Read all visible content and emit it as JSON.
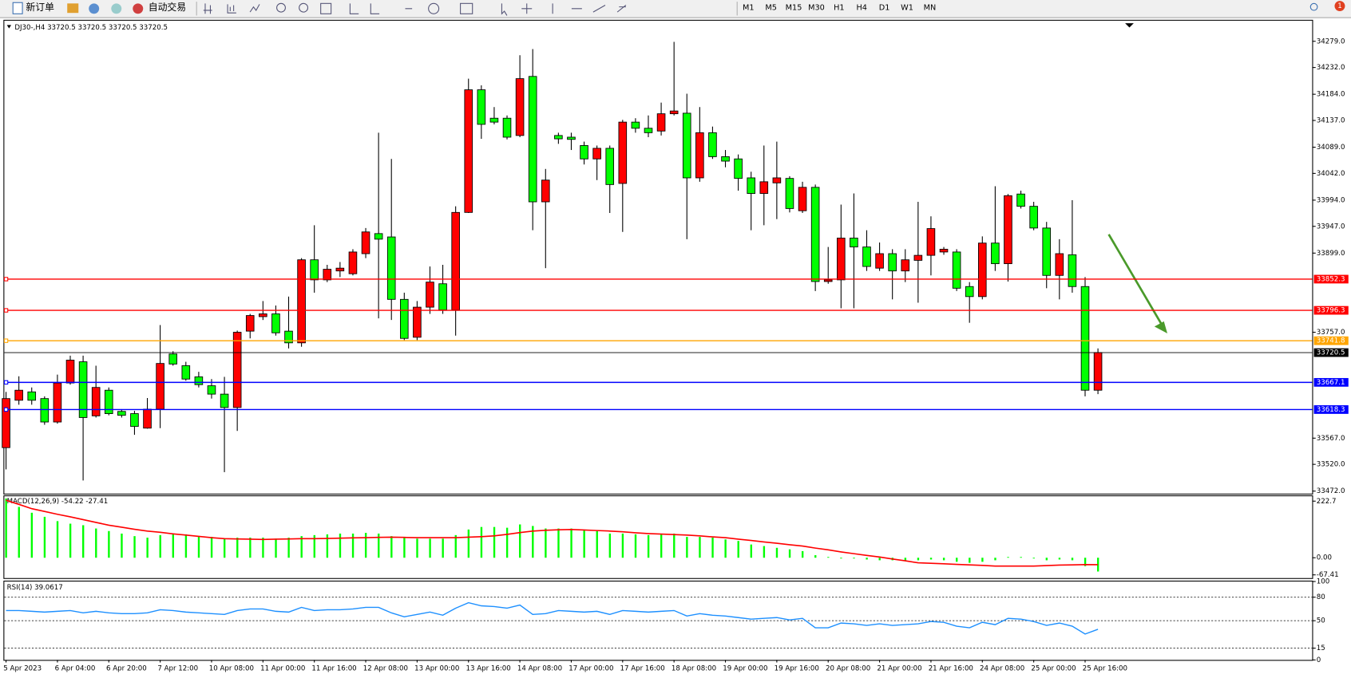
{
  "toolbar": {
    "new_order": "新订单",
    "auto_trading": "自动交易",
    "timeframes": [
      "M1",
      "M5",
      "M15",
      "M30",
      "H1",
      "H4",
      "D1",
      "W1",
      "MN"
    ],
    "notification": "1"
  },
  "chart_data": [
    {
      "type": "candlestick",
      "title": "DJ30-,H4  33720.5 33720.5 33720.5 33720.5",
      "categories": [
        "5 Apr 2023",
        null,
        null,
        null,
        "6 Apr 04:00",
        null,
        null,
        null,
        "6 Apr 20:00",
        null,
        null,
        null,
        "7 Apr 12:00",
        null,
        null,
        null,
        "10 Apr 08:00",
        null,
        null,
        null,
        "11 Apr 00:00",
        null,
        null,
        null,
        "11 Apr 16:00",
        null,
        null,
        null,
        "12 Apr 08:00",
        null,
        null,
        null,
        "13 Apr 00:00",
        null,
        null,
        null,
        "13 Apr 16:00",
        null,
        null,
        null,
        "14 Apr 08:00",
        null,
        null,
        null,
        "17 Apr 00:00",
        null,
        null,
        null,
        "17 Apr 16:00",
        null,
        null,
        null,
        "18 Apr 08:00",
        null,
        null,
        null,
        "19 Apr 00:00",
        null,
        null,
        null,
        "19 Apr 16:00",
        null,
        null,
        null,
        "20 Apr 08:00",
        null,
        null,
        null,
        "21 Apr 00:00",
        null,
        null,
        null,
        "21 Apr 16:00",
        null,
        null,
        null,
        "24 Apr 08:00",
        null,
        null,
        null,
        "25 Apr 00:00",
        null,
        null,
        null,
        "25 Apr 16:00",
        null
      ],
      "open": [
        33550,
        33635,
        33650,
        33638,
        33596,
        33666,
        33704,
        33607,
        33653,
        33615,
        33611,
        33585,
        33619,
        33718,
        33697,
        33677,
        33661,
        33646,
        33622,
        33759,
        33785,
        33790,
        33759,
        33738,
        33887,
        33851,
        33867,
        33862,
        33898,
        33934,
        33928,
        33816,
        33748,
        33802,
        33844,
        33797,
        33972,
        34192,
        34141,
        34141,
        34110,
        34216,
        33991,
        34110,
        34107,
        34092,
        34068,
        34087,
        34024,
        34134,
        34123,
        34118,
        34149,
        34150,
        34034,
        34115,
        34072,
        34068,
        34034,
        34006,
        34025,
        34033,
        33975,
        34017,
        33848,
        33851,
        33926,
        33910,
        33872,
        33898,
        33867,
        33886,
        33895,
        33901,
        33901,
        33839,
        33821,
        33917,
        33880,
        34005,
        33983,
        33944,
        33859,
        33896,
        33839,
        33653
      ],
      "high": [
        33650,
        33678,
        33658,
        33642,
        33681,
        33715,
        33715,
        33697,
        33658,
        33619,
        33616,
        33639,
        33770,
        33723,
        33704,
        33686,
        33673,
        33677,
        33760,
        33790,
        33813,
        33805,
        33821,
        33890,
        33949,
        33878,
        33883,
        33906,
        33944,
        34115,
        34068,
        33828,
        33813,
        33875,
        33878,
        33983,
        34212,
        34200,
        34161,
        34146,
        34254,
        34265,
        34050,
        34115,
        34115,
        34099,
        34092,
        34092,
        34138,
        34141,
        34146,
        34169,
        34278,
        34185,
        34161,
        34126,
        34084,
        34076,
        34045,
        34092,
        34099,
        34037,
        34027,
        34022,
        33910,
        33986,
        34006,
        33940,
        33918,
        33906,
        33906,
        33991,
        33965,
        33910,
        33906,
        33847,
        33929,
        34019,
        34005,
        34011,
        33991,
        33955,
        33924,
        33994,
        33856,
        33728
      ],
      "low": [
        33511,
        33627,
        33627,
        33591,
        33593,
        33663,
        33491,
        33604,
        33608,
        33604,
        33573,
        33584,
        33585,
        33697,
        33670,
        33658,
        33638,
        33506,
        33580,
        33746,
        33779,
        33751,
        33728,
        33731,
        33828,
        33847,
        33856,
        33859,
        33890,
        33782,
        33779,
        33743,
        33743,
        33790,
        33790,
        33751,
        33971,
        34104,
        34130,
        34103,
        34107,
        33940,
        33872,
        34095,
        34084,
        34058,
        34030,
        33971,
        33937,
        34115,
        34107,
        34110,
        34146,
        33924,
        34027,
        34068,
        34053,
        34011,
        33940,
        33949,
        33960,
        33972,
        33971,
        33831,
        33844,
        33800,
        33800,
        33867,
        33867,
        33816,
        33847,
        33810,
        33859,
        33896,
        33831,
        33774,
        33816,
        33867,
        33848,
        33979,
        33940,
        33836,
        33816,
        33828,
        33642,
        33646
      ],
      "close": [
        33638,
        33653,
        33635,
        33596,
        33666,
        33707,
        33604,
        33658,
        33611,
        33608,
        33588,
        33619,
        33701,
        33700,
        33673,
        33663,
        33646,
        33622,
        33757,
        33787,
        33790,
        33756,
        33738,
        33887,
        33851,
        33870,
        33872,
        33901,
        33937,
        33924,
        33816,
        33746,
        33802,
        33847,
        33797,
        33972,
        34192,
        34130,
        34134,
        34107,
        34212,
        33991,
        34030,
        34104,
        34103,
        34068,
        34087,
        34022,
        34134,
        34123,
        34115,
        34149,
        34154,
        34034,
        34115,
        34072,
        34064,
        34033,
        34006,
        34027,
        34034,
        33979,
        34017,
        33848,
        33851,
        33926,
        33910,
        33875,
        33898,
        33867,
        33887,
        33895,
        33943,
        33906,
        33836,
        33821,
        33917,
        33880,
        34002,
        33983,
        33944,
        33859,
        33898,
        33839,
        33653,
        33720.5
      ],
      "up_color": "#ff0000",
      "down_color": "#00ff00",
      "ylim": [
        33469,
        34316
      ],
      "yticks": [
        {
          "value": 34279,
          "label": "34279.0"
        },
        {
          "value": 34232,
          "label": "34232.0"
        },
        {
          "value": 34184,
          "label": "34184.0"
        },
        {
          "value": 34137,
          "label": "34137.0"
        },
        {
          "value": 34089,
          "label": "34089.0"
        },
        {
          "value": 34042,
          "label": "34042.0"
        },
        {
          "value": 33994,
          "label": "33994.0"
        },
        {
          "value": 33947,
          "label": "33947.0"
        },
        {
          "value": 33899,
          "label": "33899.0"
        },
        {
          "value": 33757,
          "label": "33757.0"
        },
        {
          "value": 33567,
          "label": "33567.0"
        },
        {
          "value": 33520,
          "label": "33520.0"
        },
        {
          "value": 33472,
          "label": "33472.0"
        }
      ],
      "levels": [
        {
          "value": 33852.3,
          "color": "#ff0000"
        },
        {
          "value": 33796.3,
          "color": "#ff0000"
        },
        {
          "value": 33741.8,
          "color": "#ffa500"
        },
        {
          "value": 33667.1,
          "color": "#0000ff"
        },
        {
          "value": 33618.3,
          "color": "#0000ff"
        }
      ],
      "current_price": 33720.5
    },
    {
      "type": "macd",
      "title": "MACD(12,26,9) -54.22 -27.41",
      "histogram": {
        "color": "#00ff00",
        "values": [
          233,
          200,
          177,
          161,
          144,
          134,
          128,
          115,
          105,
          95,
          85,
          79,
          89,
          95,
          92,
          85,
          82,
          75,
          79,
          79,
          79,
          75,
          79,
          85,
          89,
          92,
          95,
          95,
          98,
          95,
          85,
          79,
          75,
          75,
          75,
          89,
          111,
          121,
          121,
          118,
          131,
          125,
          115,
          115,
          115,
          108,
          105,
          95,
          95,
          92,
          89,
          92,
          95,
          82,
          82,
          79,
          72,
          66,
          52,
          46,
          39,
          33,
          26,
          10,
          3,
          -3,
          -3,
          -7,
          -10,
          -10,
          -13,
          -10,
          -7,
          -10,
          -16,
          -20,
          -16,
          -10,
          3,
          3,
          -3,
          -10,
          -7,
          -10,
          -33,
          -54.22
        ]
      },
      "signal": {
        "color": "#ff0000",
        "values": [
          226,
          210,
          193,
          182,
          171,
          161,
          150,
          139,
          128,
          120,
          112,
          105,
          100,
          94,
          89,
          84,
          79,
          75,
          74,
          73,
          72,
          73,
          74,
          75,
          75,
          76,
          77,
          78,
          79,
          80,
          81,
          80,
          79,
          79,
          79,
          79,
          81,
          83,
          86,
          92,
          99,
          105,
          108,
          110,
          111,
          109,
          107,
          105,
          102,
          98,
          95,
          93,
          91,
          89,
          86,
          82,
          79,
          73,
          68,
          62,
          57,
          51,
          46,
          38,
          31,
          23,
          16,
          9,
          3,
          -5,
          -12,
          -20,
          -22,
          -24,
          -26,
          -28,
          -30,
          -33,
          -33,
          -33,
          -33,
          -31,
          -29,
          -28,
          -27,
          -27.41
        ]
      },
      "ylim": [
        -80,
        242
      ],
      "yticks": [
        222.7,
        {
          "value": 0,
          "label": "0.00"
        },
        -67.41
      ]
    },
    {
      "type": "line",
      "title": "RSI(14) 39.0617",
      "color": "#1e90ff",
      "values": [
        63,
        63,
        62,
        61,
        62,
        63,
        60,
        62,
        60,
        59,
        59,
        60,
        64,
        63,
        61,
        60,
        59,
        58,
        63,
        65,
        65,
        62,
        61,
        67,
        63,
        64,
        64,
        65,
        67,
        67,
        60,
        55,
        58,
        61,
        57,
        66,
        73,
        69,
        68,
        66,
        70,
        58,
        59,
        63,
        62,
        61,
        62,
        58,
        63,
        62,
        61,
        62,
        63,
        56,
        59,
        57,
        56,
        54,
        52,
        53,
        54,
        51,
        53,
        41,
        41,
        47,
        46,
        44,
        46,
        44,
        45,
        46,
        49,
        48,
        43,
        41,
        48,
        45,
        53,
        52,
        49,
        44,
        47,
        43,
        33,
        39.0617
      ],
      "ylim": [
        0,
        100
      ],
      "yticks": [
        100,
        80,
        50,
        15,
        0
      ],
      "levels": [
        80,
        50,
        15
      ]
    }
  ]
}
